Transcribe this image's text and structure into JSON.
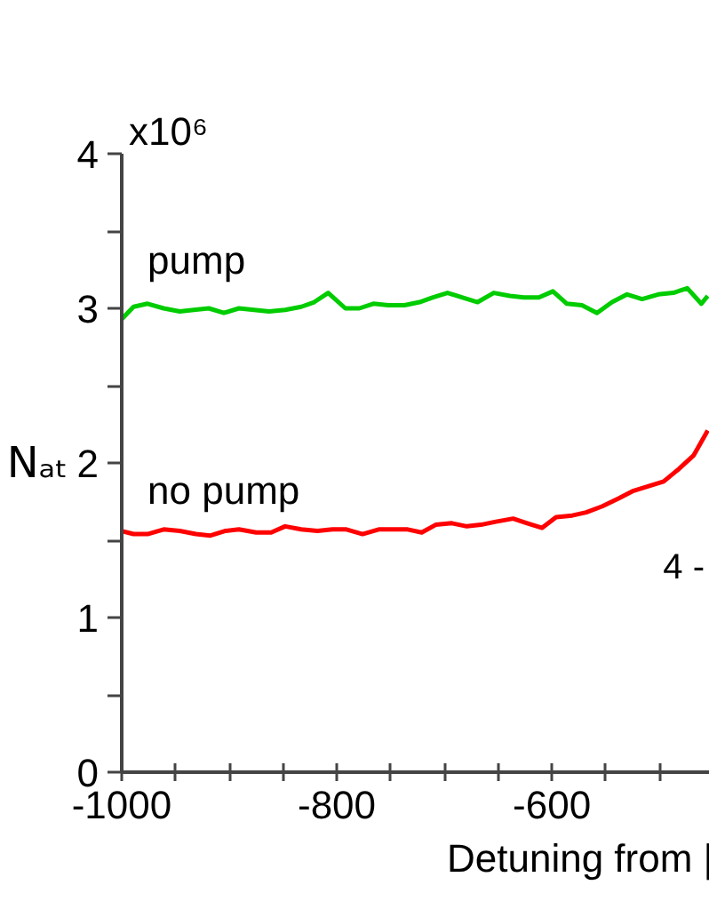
{
  "chart_data": {
    "type": "line",
    "xlabel": "Detuning from |",
    "ylabel": "Nₐₜ",
    "annotations": [
      "x10⁶",
      "4 -"
    ],
    "xlim": [
      -1000,
      -453
    ],
    "ylim": [
      0,
      4
    ],
    "xticks": [
      -1000,
      {
        "value": -950,
        "label": null
      },
      {
        "value": -900,
        "label": null
      },
      {
        "value": -850,
        "label": null
      },
      -800,
      {
        "value": -750,
        "label": null
      },
      {
        "value": -700,
        "label": null
      },
      {
        "value": -650,
        "label": null
      },
      -600,
      {
        "value": -550,
        "label": null
      },
      {
        "value": -500,
        "label": null
      }
    ],
    "yticks": [
      0,
      {
        "value": 0.5,
        "label": null
      },
      1,
      {
        "value": 1.5,
        "label": null
      },
      2,
      {
        "value": 2.5,
        "label": null
      },
      3,
      {
        "value": 3.5,
        "label": null
      },
      4
    ],
    "grid": false,
    "series": [
      {
        "name": "pump",
        "color": "#00cc00",
        "x": [
          -1000,
          -989,
          -976,
          -961,
          -946,
          -933,
          -919,
          -905,
          -891,
          -877,
          -863,
          -848,
          -833,
          -821,
          -808,
          -792,
          -779,
          -766,
          -752,
          -737,
          -723,
          -711,
          -697,
          -683,
          -669,
          -654,
          -639,
          -626,
          -612,
          -599,
          -586,
          -572,
          -558,
          -544,
          -530,
          -516,
          -501,
          -487,
          -474,
          -461,
          -455
        ],
        "values": [
          2.93,
          3.01,
          3.03,
          3.0,
          2.98,
          2.99,
          3.0,
          2.97,
          3.0,
          2.99,
          2.98,
          2.99,
          3.01,
          3.04,
          3.1,
          3.0,
          3.0,
          3.03,
          3.02,
          3.02,
          3.04,
          3.07,
          3.1,
          3.07,
          3.04,
          3.1,
          3.08,
          3.07,
          3.07,
          3.11,
          3.03,
          3.02,
          2.97,
          3.04,
          3.09,
          3.06,
          3.09,
          3.1,
          3.13,
          3.03,
          3.08
        ]
      },
      {
        "name": "no pump",
        "color": "#ff0000",
        "x": [
          -1000,
          -989,
          -976,
          -961,
          -946,
          -931,
          -918,
          -904,
          -891,
          -875,
          -861,
          -848,
          -833,
          -818,
          -804,
          -791,
          -776,
          -761,
          -748,
          -734,
          -721,
          -708,
          -693,
          -679,
          -666,
          -652,
          -636,
          -623,
          -609,
          -596,
          -581,
          -568,
          -553,
          -538,
          -524,
          -510,
          -496,
          -482,
          -468,
          -455
        ],
        "values": [
          1.56,
          1.54,
          1.54,
          1.57,
          1.56,
          1.54,
          1.53,
          1.56,
          1.57,
          1.55,
          1.55,
          1.59,
          1.57,
          1.56,
          1.57,
          1.57,
          1.54,
          1.57,
          1.57,
          1.57,
          1.55,
          1.6,
          1.61,
          1.59,
          1.6,
          1.62,
          1.64,
          1.61,
          1.58,
          1.65,
          1.66,
          1.68,
          1.72,
          1.77,
          1.82,
          1.85,
          1.88,
          1.96,
          2.05,
          2.21
        ]
      }
    ]
  }
}
